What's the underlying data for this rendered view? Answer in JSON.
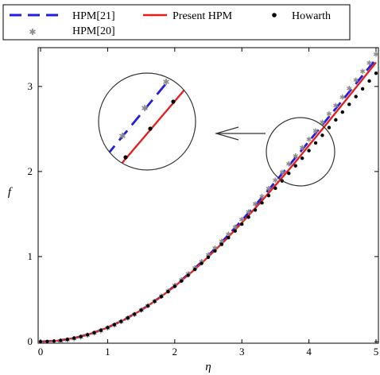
{
  "chart_data": {
    "type": "line",
    "xlabel": "η",
    "ylabel": "f",
    "xlim": [
      0,
      5
    ],
    "ylim": [
      0,
      3.4
    ],
    "x_ticks": [
      0,
      1,
      2,
      3,
      4,
      5
    ],
    "y_ticks": [
      0,
      1,
      2,
      3
    ],
    "legend_position": "top",
    "series": [
      {
        "name": "HPM[21]",
        "style": "dashed-line",
        "color": "#1f1fdc",
        "x": [
          0,
          0.25,
          0.5,
          0.75,
          1.0,
          1.25,
          1.5,
          1.75,
          2.0,
          2.25,
          2.5,
          2.75,
          3.0,
          3.25,
          3.5,
          3.75,
          4.0,
          4.25,
          4.5,
          4.75,
          5.0
        ],
        "y": [
          0,
          0.0104,
          0.0415,
          0.0933,
          0.1655,
          0.2583,
          0.3713,
          0.504,
          0.656,
          0.826,
          1.012,
          1.212,
          1.425,
          1.648,
          1.879,
          2.115,
          2.354,
          2.596,
          2.838,
          3.08,
          3.322
        ]
      },
      {
        "name": "Present HPM",
        "style": "solid-line",
        "color": "#e81c1c",
        "x": [
          0,
          0.25,
          0.5,
          0.75,
          1.0,
          1.25,
          1.5,
          1.75,
          2.0,
          2.25,
          2.5,
          2.75,
          3.0,
          3.25,
          3.5,
          3.75,
          4.0,
          4.25,
          4.5,
          4.75,
          5.0
        ],
        "y": [
          0,
          0.0104,
          0.0415,
          0.0933,
          0.1656,
          0.258,
          0.3701,
          0.5011,
          0.65,
          0.8155,
          0.9963,
          1.1907,
          1.3968,
          1.6129,
          1.8371,
          2.0672,
          2.3058,
          2.5467,
          2.7903,
          3.0353,
          3.2833
        ]
      },
      {
        "name": "Howarth",
        "style": "dots",
        "color": "#000000",
        "x": [
          0,
          0.1,
          0.2,
          0.3,
          0.4,
          0.5,
          0.6,
          0.7,
          0.8,
          0.9,
          1.0,
          1.1,
          1.2,
          1.3,
          1.4,
          1.5,
          1.6,
          1.7,
          1.8,
          1.9,
          2.0,
          2.1,
          2.2,
          2.3,
          2.4,
          2.5,
          2.6,
          2.7,
          2.8,
          2.9,
          3.0,
          3.1,
          3.2,
          3.3,
          3.4,
          3.5,
          3.6,
          3.7,
          3.8,
          3.9,
          4.0,
          4.1,
          4.2,
          4.3,
          4.4,
          4.5,
          4.6,
          4.7,
          4.8,
          4.9,
          5.0
        ],
        "y": [
          0,
          0.0017,
          0.0066,
          0.0149,
          0.0266,
          0.0415,
          0.0597,
          0.0813,
          0.1061,
          0.1342,
          0.1656,
          0.2002,
          0.238,
          0.2789,
          0.323,
          0.3701,
          0.4203,
          0.4733,
          0.5292,
          0.5878,
          0.65,
          0.713,
          0.7795,
          0.8483,
          0.9192,
          0.9923,
          1.0669,
          1.1436,
          1.2217,
          1.3012,
          1.3818,
          1.4638,
          1.547,
          1.6314,
          1.7166,
          1.803,
          1.8902,
          1.9782,
          2.0669,
          2.1561,
          2.2456,
          2.3355,
          2.4258,
          2.5163,
          2.6072,
          2.6983,
          2.7896,
          2.881,
          2.9724,
          3.064,
          3.1557
        ]
      },
      {
        "name": "HPM[20]",
        "style": "stars",
        "color": "#8c8c8c",
        "x": [
          0,
          0.1,
          0.2,
          0.3,
          0.4,
          0.5,
          0.6,
          0.7,
          0.8,
          0.9,
          1.0,
          1.1,
          1.2,
          1.3,
          1.4,
          1.5,
          1.6,
          1.7,
          1.8,
          1.9,
          2.0,
          2.1,
          2.2,
          2.3,
          2.4,
          2.5,
          2.6,
          2.7,
          2.8,
          2.9,
          3.0,
          3.1,
          3.2,
          3.3,
          3.4,
          3.5,
          3.6,
          3.7,
          3.8,
          3.9,
          4.0,
          4.1,
          4.2,
          4.3,
          4.4,
          4.5,
          4.6,
          4.7,
          4.8,
          4.9,
          5.0
        ],
        "y": [
          0,
          0.0017,
          0.0066,
          0.015,
          0.0267,
          0.0418,
          0.0602,
          0.082,
          0.1072,
          0.1358,
          0.1677,
          0.203,
          0.2416,
          0.2834,
          0.3286,
          0.377,
          0.4286,
          0.4833,
          0.5412,
          0.6021,
          0.666,
          0.7327,
          0.8022,
          0.8744,
          0.9491,
          1.0263,
          1.1058,
          1.1874,
          1.271,
          1.3566,
          1.4439,
          1.533,
          1.6236,
          1.7156,
          1.8088,
          1.9032,
          1.9986,
          2.0948,
          2.1918,
          2.2894,
          2.3875,
          2.4862,
          2.5852,
          2.6845,
          2.7841,
          2.8839,
          2.9839,
          3.084,
          3.1842,
          3.2844,
          3.3847
        ]
      }
    ]
  }
}
